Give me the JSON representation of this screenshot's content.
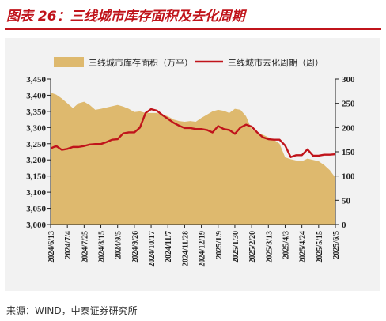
{
  "figure": {
    "title": "图表 26：三线城市库存面积及去化周期",
    "source": "来源：WIND，中泰证券研究所",
    "colors": {
      "title": "#c0141b",
      "area": "#deb96e",
      "line": "#c0141b",
      "panel_bg": "#f2f2f2"
    }
  },
  "chart_data": {
    "type": "area",
    "title": "",
    "xlabel": "",
    "ylabel": "",
    "y_left_lim": [
      3000,
      3450
    ],
    "y_left_ticks": [
      3000,
      3050,
      3100,
      3150,
      3200,
      3250,
      3300,
      3350,
      3400,
      3450
    ],
    "y_left_tick_labels": [
      "3,000",
      "3,050",
      "3,100",
      "3,150",
      "3,200",
      "3,250",
      "3,300",
      "3,350",
      "3,400",
      "3,450"
    ],
    "y_right_lim": [
      0,
      300
    ],
    "y_right_ticks": [
      0,
      50,
      100,
      150,
      200,
      250,
      300
    ],
    "x_tick_labels": [
      "2024/6/13",
      "2024/7/4",
      "2024/7/25",
      "2024/8/15",
      "2024/9/5",
      "2024/9/26",
      "2024/10/17",
      "2024/11/7",
      "2024/11/28",
      "2024/12/19",
      "2025/1/9",
      "2025/1/30",
      "2025/2/20",
      "2025/3/13",
      "2025/4/3",
      "2025/4/24",
      "2025/5/15",
      "2025/6/5"
    ],
    "legend_position": "top",
    "grid": false,
    "x": [
      "2024/6/13",
      "2024/6/20",
      "2024/6/27",
      "2024/7/4",
      "2024/7/11",
      "2024/7/18",
      "2024/7/25",
      "2024/8/1",
      "2024/8/8",
      "2024/8/15",
      "2024/8/22",
      "2024/8/29",
      "2024/9/5",
      "2024/9/12",
      "2024/9/19",
      "2024/9/26",
      "2024/10/3",
      "2024/10/10",
      "2024/10/17",
      "2024/10/24",
      "2024/10/31",
      "2024/11/7",
      "2024/11/14",
      "2024/11/21",
      "2024/11/28",
      "2024/12/5",
      "2024/12/12",
      "2024/12/19",
      "2024/12/26",
      "2025/1/2",
      "2025/1/9",
      "2025/1/16",
      "2025/1/23",
      "2025/1/30",
      "2025/2/6",
      "2025/2/13",
      "2025/2/20",
      "2025/2/27",
      "2025/3/6",
      "2025/3/13",
      "2025/3/20",
      "2025/3/27",
      "2025/4/3",
      "2025/4/10",
      "2025/4/17",
      "2025/4/24",
      "2025/5/1",
      "2025/5/8",
      "2025/5/15",
      "2025/5/22",
      "2025/5/29",
      "2025/6/5"
    ],
    "series": [
      {
        "name": "三线城市库存面积（万平）",
        "type": "area",
        "axis": "left",
        "values": [
          3408,
          3402,
          3390,
          3375,
          3360,
          3375,
          3380,
          3370,
          3355,
          3358,
          3362,
          3366,
          3370,
          3365,
          3358,
          3348,
          3350,
          3345,
          3345,
          3345,
          3340,
          3335,
          3325,
          3320,
          3318,
          3320,
          3318,
          3330,
          3340,
          3350,
          3355,
          3352,
          3345,
          3358,
          3355,
          3335,
          3295,
          3285,
          3278,
          3270,
          3262,
          3250,
          3208,
          3202,
          3198,
          3196,
          3204,
          3200,
          3196,
          3184,
          3168,
          3145
        ]
      },
      {
        "name": "三线城市去化周期（周）",
        "type": "line",
        "axis": "right",
        "values": [
          157,
          162,
          154,
          156,
          160,
          160,
          162,
          165,
          166,
          166,
          170,
          175,
          176,
          188,
          190,
          190,
          200,
          230,
          238,
          235,
          226,
          218,
          210,
          204,
          199,
          199,
          197,
          197,
          195,
          190,
          203,
          197,
          195,
          187,
          200,
          206,
          202,
          190,
          180,
          176,
          175,
          175,
          163,
          139,
          143,
          143,
          155,
          142,
          142,
          144,
          144,
          145
        ]
      }
    ]
  }
}
